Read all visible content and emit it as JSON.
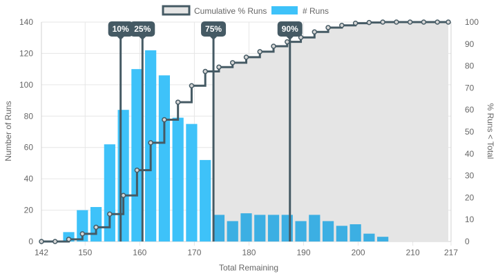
{
  "chart_data": {
    "type": "bar",
    "xlabel": "Total Remaining",
    "ylabel": "Number of Runs",
    "y2label": "% Runs < Total",
    "xlim": [
      142,
      217
    ],
    "ylim": [
      0,
      140
    ],
    "y2lim": [
      0,
      100
    ],
    "x_ticks": [
      142,
      150,
      160,
      170,
      180,
      190,
      200,
      210,
      217
    ],
    "y_ticks": [
      0,
      20,
      40,
      60,
      80,
      100,
      120,
      140
    ],
    "y2_ticks": [
      0,
      10,
      20,
      30,
      40,
      50,
      60,
      70,
      80,
      90,
      100
    ],
    "grid": true,
    "legend_position": "top-center",
    "series": [
      {
        "name": "# Runs",
        "kind": "bar",
        "color": "#3ec2f9",
        "shade_color": "#3cafe3",
        "x": [
          142,
          144.5,
          147,
          149.5,
          152,
          154.5,
          157,
          159.5,
          162,
          164.5,
          167,
          169.5,
          172,
          174.5,
          177,
          179.5,
          182,
          184.5,
          187,
          189.5,
          192,
          194.5,
          197,
          199.5,
          202,
          204.5,
          207,
          209.5,
          212,
          214.5
        ],
        "values": [
          0,
          0,
          6,
          20,
          22,
          62,
          84,
          110,
          122,
          106,
          79,
          75,
          52,
          17,
          13,
          18,
          17,
          17,
          17,
          13,
          17,
          13,
          10,
          11,
          5,
          3,
          0,
          0,
          0,
          0
        ]
      },
      {
        "name": "Cumulative % Runs",
        "kind": "step",
        "color": "#455a64",
        "fill": "#e5e5e5",
        "x": [
          142,
          144.5,
          147,
          149.5,
          152,
          154.5,
          157,
          159.5,
          162,
          164.5,
          167,
          169.5,
          172,
          174.5,
          177,
          179.5,
          182,
          184.5,
          187,
          189.5,
          192,
          194.5,
          197,
          199.5,
          202,
          204.5,
          207,
          209.5,
          212,
          214.5,
          216.5
        ],
        "values": [
          0,
          0,
          1,
          3.5,
          6.5,
          12.5,
          21,
          32.5,
          45,
          55.5,
          63.5,
          71,
          77.5,
          79.5,
          81.5,
          84,
          86.5,
          89,
          91,
          93,
          95.5,
          97.5,
          98.5,
          99.5,
          99.8,
          100,
          100,
          100,
          100,
          100,
          100
        ]
      }
    ],
    "percentile_markers": [
      {
        "label": "10%",
        "x": 156.5
      },
      {
        "label": "25%",
        "x": 160.5
      },
      {
        "label": "75%",
        "x": 173.5
      },
      {
        "label": "90%",
        "x": 187.5
      }
    ]
  }
}
